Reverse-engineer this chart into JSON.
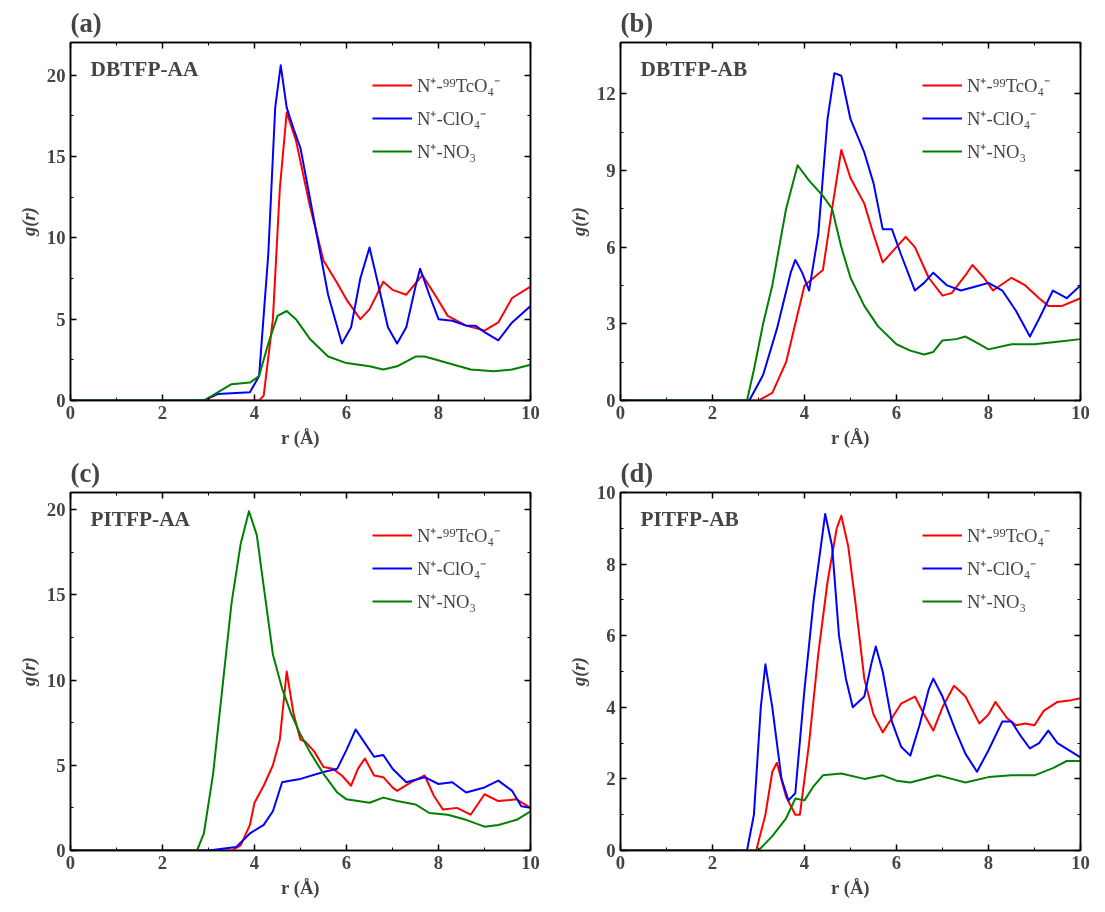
{
  "chart_data": [
    {
      "type": "line",
      "title": "DBTFP-AA",
      "annotations": [
        "(a)"
      ],
      "xlabel": "r (Å)",
      "ylabel": "g(r)",
      "xlim": [
        0,
        10
      ],
      "xticks": [
        0,
        2,
        4,
        6,
        8,
        10
      ],
      "ylim": [
        0,
        22
      ],
      "yticks": [
        0,
        5,
        10,
        15,
        20
      ],
      "legend": "top right",
      "grid": false,
      "line_style": "solid",
      "series": [
        {
          "name": "N⁺-⁹⁹TcO₄⁻",
          "color": "#ff0000",
          "x": [
            0,
            4.1,
            4.2,
            4.4,
            4.55,
            4.7,
            4.9,
            5.2,
            5.5,
            5.8,
            6.0,
            6.3,
            6.5,
            6.8,
            7.0,
            7.3,
            7.5,
            7.65,
            7.9,
            8.2,
            8.6,
            9.0,
            9.3,
            9.6,
            10
          ],
          "values": [
            0,
            0,
            0.3,
            5,
            13,
            17.7,
            16,
            12,
            8.6,
            7.2,
            6.2,
            5.0,
            5.6,
            7.3,
            6.8,
            6.5,
            7.2,
            7.7,
            6.6,
            5.2,
            4.6,
            4.3,
            4.8,
            6.3,
            7.0
          ]
        },
        {
          "name": "N⁺-ClO₄⁻",
          "color": "#0000ff",
          "x": [
            0,
            2.9,
            3.2,
            3.9,
            4.1,
            4.3,
            4.45,
            4.57,
            4.7,
            4.85,
            5.0,
            5.3,
            5.6,
            5.9,
            6.1,
            6.3,
            6.5,
            6.7,
            6.9,
            7.1,
            7.3,
            7.5,
            7.6,
            7.8,
            8.0,
            8.3,
            8.6,
            8.8,
            9.0,
            9.3,
            9.6,
            10
          ],
          "values": [
            0,
            0,
            0.4,
            0.5,
            1.5,
            9,
            18,
            20.6,
            18,
            16.7,
            15.5,
            11,
            6.5,
            3.5,
            4.5,
            7.5,
            9.4,
            7,
            4.5,
            3.5,
            4.5,
            7,
            8.1,
            6.5,
            5.0,
            4.9,
            4.6,
            4.6,
            4.2,
            3.7,
            4.8,
            5.8
          ]
        },
        {
          "name": "N⁺-NO₃",
          "color": "#008000",
          "x": [
            0,
            2.9,
            3.2,
            3.5,
            3.9,
            4.1,
            4.3,
            4.5,
            4.7,
            4.9,
            5.2,
            5.6,
            6.0,
            6.5,
            6.8,
            7.1,
            7.5,
            7.7,
            8.2,
            8.7,
            9.2,
            9.6,
            10
          ],
          "values": [
            0,
            0,
            0.5,
            1.0,
            1.1,
            1.5,
            3.5,
            5.2,
            5.5,
            5.0,
            3.8,
            2.7,
            2.3,
            2.1,
            1.9,
            2.1,
            2.7,
            2.7,
            2.3,
            1.9,
            1.8,
            1.9,
            2.2
          ]
        }
      ]
    },
    {
      "type": "line",
      "title": "DBTFP-AB",
      "annotations": [
        "(b)"
      ],
      "xlabel": "r (Å)",
      "ylabel": "g(r)",
      "xlim": [
        0,
        10
      ],
      "xticks": [
        0,
        2,
        4,
        6,
        8,
        10
      ],
      "ylim": [
        0,
        14
      ],
      "yticks": [
        0,
        3,
        6,
        9,
        12
      ],
      "legend": "top right",
      "grid": false,
      "line_style": "solid",
      "series": [
        {
          "name": "N⁺-⁹⁹TcO₄⁻",
          "color": "#ff0000",
          "x": [
            0,
            3.0,
            3.3,
            3.6,
            3.8,
            4.0,
            4.2,
            4.4,
            4.6,
            4.8,
            5.0,
            5.3,
            5.5,
            5.7,
            5.9,
            6.2,
            6.4,
            6.7,
            7.0,
            7.2,
            7.5,
            7.65,
            7.9,
            8.1,
            8.5,
            8.8,
            9.1,
            9.3,
            9.6,
            10
          ],
          "values": [
            0,
            0,
            0.3,
            1.5,
            3.0,
            4.5,
            4.8,
            5.1,
            7.5,
            9.8,
            8.7,
            7.7,
            6.5,
            5.4,
            5.8,
            6.4,
            6.0,
            4.8,
            4.1,
            4.2,
            4.9,
            5.3,
            4.8,
            4.3,
            4.8,
            4.5,
            4.0,
            3.7,
            3.7,
            4.0
          ]
        },
        {
          "name": "N⁺-ClO₄⁻",
          "color": "#0000ff",
          "x": [
            0,
            2.8,
            3.1,
            3.4,
            3.7,
            3.8,
            3.95,
            4.1,
            4.3,
            4.5,
            4.65,
            4.8,
            5.0,
            5.3,
            5.5,
            5.7,
            5.9,
            6.1,
            6.4,
            6.6,
            6.8,
            7.1,
            7.4,
            7.8,
            8.0,
            8.3,
            8.6,
            8.9,
            9.1,
            9.4,
            9.7,
            10
          ],
          "values": [
            0,
            0,
            1.0,
            2.8,
            5.0,
            5.5,
            5.0,
            4.3,
            6.5,
            11,
            12.8,
            12.7,
            11,
            9.7,
            8.5,
            6.7,
            6.7,
            5.7,
            4.3,
            4.6,
            5.0,
            4.5,
            4.3,
            4.5,
            4.6,
            4.3,
            3.5,
            2.5,
            3.2,
            4.3,
            4.0,
            4.5
          ]
        },
        {
          "name": "N⁺-NO₃",
          "color": "#008000",
          "x": [
            0,
            2.75,
            2.9,
            3.1,
            3.3,
            3.6,
            3.85,
            4.1,
            4.4,
            4.6,
            4.8,
            5.0,
            5.3,
            5.6,
            6.0,
            6.3,
            6.6,
            6.8,
            7.0,
            7.3,
            7.5,
            7.8,
            8.0,
            8.5,
            9.0,
            9.5,
            10
          ],
          "values": [
            0,
            0,
            1.2,
            3.0,
            4.5,
            7.5,
            9.2,
            8.6,
            8.0,
            7.5,
            6.0,
            4.8,
            3.7,
            2.9,
            2.2,
            1.95,
            1.8,
            1.9,
            2.35,
            2.4,
            2.5,
            2.2,
            2.0,
            2.2,
            2.2,
            2.3,
            2.4
          ]
        }
      ]
    },
    {
      "type": "line",
      "title": "PITFP-AA",
      "annotations": [
        "(c)"
      ],
      "xlabel": "r (Å)",
      "ylabel": "g(r)",
      "xlim": [
        0,
        10
      ],
      "xticks": [
        0,
        2,
        4,
        6,
        8,
        10
      ],
      "ylim": [
        0,
        21
      ],
      "yticks": [
        0,
        5,
        10,
        15,
        20
      ],
      "legend": "top right",
      "grid": false,
      "line_style": "solid",
      "series": [
        {
          "name": "N⁺-⁹⁹TcO₄⁻",
          "color": "#ff0000",
          "x": [
            0,
            3.5,
            3.7,
            3.9,
            4.0,
            4.2,
            4.4,
            4.55,
            4.7,
            4.85,
            5.0,
            5.1,
            5.3,
            5.5,
            5.7,
            5.9,
            6.1,
            6.25,
            6.4,
            6.6,
            6.8,
            7.0,
            7.1,
            7.4,
            7.7,
            7.9,
            8.1,
            8.4,
            8.7,
            9.0,
            9.3,
            9.7,
            10
          ],
          "values": [
            0,
            0,
            0.3,
            1.5,
            2.8,
            3.8,
            5.0,
            6.5,
            10.5,
            8.0,
            6.5,
            6.4,
            5.8,
            4.9,
            4.8,
            4.4,
            3.8,
            4.8,
            5.4,
            4.4,
            4.3,
            3.7,
            3.5,
            4.0,
            4.4,
            3.2,
            2.4,
            2.5,
            2.1,
            3.3,
            2.9,
            3.0,
            2.5
          ]
        },
        {
          "name": "N⁺-ClO₄⁻",
          "color": "#0000ff",
          "x": [
            0,
            3.0,
            3.6,
            3.9,
            4.2,
            4.4,
            4.6,
            4.8,
            5.0,
            5.5,
            5.8,
            6.0,
            6.2,
            6.4,
            6.6,
            6.8,
            7.0,
            7.3,
            7.7,
            8.0,
            8.3,
            8.6,
            9.0,
            9.3,
            9.6,
            9.8,
            10
          ],
          "values": [
            0,
            0,
            0.2,
            1.0,
            1.5,
            2.3,
            4.0,
            4.1,
            4.2,
            4.6,
            4.8,
            5.9,
            7.1,
            6.3,
            5.5,
            5.6,
            4.8,
            4.0,
            4.3,
            3.9,
            4.0,
            3.4,
            3.7,
            4.1,
            3.5,
            2.6,
            2.5
          ]
        },
        {
          "name": "N⁺-NO₃",
          "color": "#008000",
          "x": [
            0,
            2.75,
            2.9,
            3.1,
            3.3,
            3.5,
            3.7,
            3.88,
            4.05,
            4.2,
            4.4,
            4.6,
            4.8,
            5.0,
            5.2,
            5.5,
            5.8,
            6.0,
            6.5,
            6.8,
            7.1,
            7.5,
            7.8,
            8.2,
            8.6,
            9.0,
            9.3,
            9.7,
            10
          ],
          "values": [
            0,
            0,
            1.0,
            4.5,
            9.5,
            14.5,
            18,
            19.9,
            18.5,
            15.5,
            11.5,
            9.5,
            8.0,
            6.8,
            5.8,
            4.5,
            3.4,
            3.0,
            2.8,
            3.1,
            2.9,
            2.7,
            2.2,
            2.1,
            1.8,
            1.4,
            1.5,
            1.8,
            2.3
          ]
        }
      ]
    },
    {
      "type": "line",
      "title": "PITFP-AB",
      "annotations": [
        "(d)"
      ],
      "xlabel": "r (Å)",
      "ylabel": "g(r)",
      "xlim": [
        0,
        10
      ],
      "xticks": [
        0,
        2,
        4,
        6,
        8,
        10
      ],
      "ylim": [
        0,
        10
      ],
      "yticks": [
        0,
        2,
        4,
        6,
        8,
        10
      ],
      "legend": "top right",
      "grid": false,
      "line_style": "solid",
      "series": [
        {
          "name": "N⁺-⁹⁹TcO₄⁻",
          "color": "#ff0000",
          "x": [
            0,
            2.95,
            3.15,
            3.3,
            3.4,
            3.6,
            3.8,
            3.9,
            4.1,
            4.3,
            4.5,
            4.7,
            4.8,
            4.95,
            5.1,
            5.3,
            5.5,
            5.7,
            5.9,
            6.1,
            6.4,
            6.6,
            6.8,
            7.0,
            7.25,
            7.5,
            7.8,
            8.0,
            8.15,
            8.4,
            8.6,
            8.8,
            9.0,
            9.2,
            9.5,
            9.8,
            10
          ],
          "values": [
            0,
            0,
            1.0,
            2.2,
            2.45,
            1.5,
            1.0,
            1.0,
            3.0,
            5.5,
            7.5,
            9.0,
            9.35,
            8.5,
            7.0,
            4.8,
            3.8,
            3.3,
            3.7,
            4.1,
            4.3,
            3.8,
            3.35,
            4.0,
            4.6,
            4.3,
            3.55,
            3.8,
            4.15,
            3.7,
            3.5,
            3.55,
            3.5,
            3.9,
            4.15,
            4.2,
            4.25
          ]
        },
        {
          "name": "N⁺-ClO₄⁻",
          "color": "#0000ff",
          "x": [
            0,
            2.75,
            2.9,
            3.05,
            3.15,
            3.3,
            3.5,
            3.65,
            3.8,
            4.0,
            4.2,
            4.45,
            4.6,
            4.75,
            4.9,
            5.05,
            5.3,
            5.45,
            5.55,
            5.7,
            5.9,
            6.1,
            6.3,
            6.5,
            6.7,
            6.8,
            7.0,
            7.3,
            7.5,
            7.75,
            8.0,
            8.3,
            8.5,
            8.7,
            8.9,
            9.1,
            9.3,
            9.5,
            10
          ],
          "values": [
            0,
            0,
            1.0,
            4.0,
            5.2,
            4.0,
            2.0,
            1.4,
            1.6,
            4.5,
            7.0,
            9.4,
            8.5,
            6.0,
            4.8,
            4.0,
            4.3,
            5.2,
            5.7,
            5.0,
            3.6,
            2.9,
            2.65,
            3.5,
            4.5,
            4.8,
            4.3,
            3.3,
            2.7,
            2.2,
            2.8,
            3.6,
            3.6,
            3.2,
            2.85,
            3.0,
            3.35,
            3.0,
            2.6
          ]
        },
        {
          "name": "N⁺-NO₃",
          "color": "#008000",
          "x": [
            0,
            3.0,
            3.3,
            3.6,
            3.8,
            4.0,
            4.2,
            4.4,
            4.8,
            5.3,
            5.7,
            6.0,
            6.3,
            6.9,
            7.2,
            7.5,
            8.0,
            8.5,
            9.0,
            9.4,
            9.7,
            10
          ],
          "values": [
            0,
            0,
            0.4,
            0.9,
            1.45,
            1.4,
            1.8,
            2.1,
            2.15,
            2.0,
            2.1,
            1.95,
            1.9,
            2.1,
            2.0,
            1.9,
            2.05,
            2.1,
            2.1,
            2.3,
            2.5,
            2.5
          ]
        }
      ]
    }
  ]
}
